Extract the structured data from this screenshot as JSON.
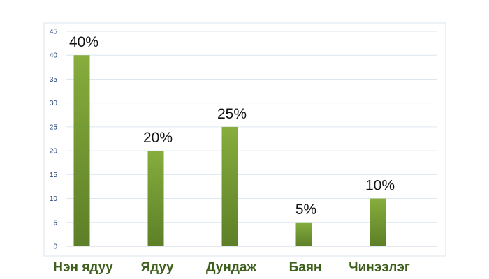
{
  "chart_data": {
    "type": "bar",
    "categories": [
      "Нэн ядуу",
      "Ядуу",
      "Дундаж",
      "Баян",
      "Чинээлэг"
    ],
    "values": [
      40,
      20,
      25,
      5,
      10
    ],
    "data_labels": [
      "40%",
      "20%",
      "25%",
      "5%",
      "10%"
    ],
    "yticks": [
      "0",
      "5",
      "10",
      "15",
      "20",
      "25",
      "30",
      "35",
      "40",
      "45"
    ],
    "ylim": [
      0,
      45
    ],
    "grid": true,
    "colors": {
      "bar_top": "#86ad3d",
      "bar_bottom": "#5d7f27",
      "category_text": "#3f5f1c",
      "tick_text": "#1f3f74",
      "grid": "#dce7f1"
    }
  }
}
